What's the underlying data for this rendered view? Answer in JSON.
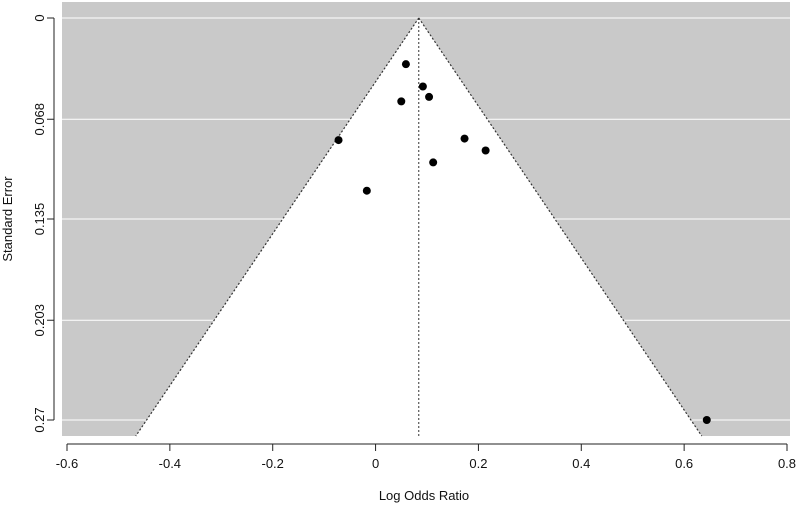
{
  "chart_data": {
    "type": "scatter",
    "subtype": "funnel plot",
    "title": "",
    "xlabel": "Log Odds Ratio",
    "ylabel": "Standard Error",
    "xlim": [
      -0.6,
      0.8
    ],
    "ylim": [
      0,
      0.27
    ],
    "y_reversed": true,
    "x_ticks": [
      -0.6,
      -0.4,
      -0.2,
      0,
      0.2,
      0.4,
      0.6,
      0.8
    ],
    "x_tick_labels": [
      "-0.6",
      "-0.4",
      "-0.2",
      "0",
      "0.2",
      "0.4",
      "0.6",
      "0.8"
    ],
    "y_ticks": [
      0,
      0.068,
      0.135,
      0.203,
      0.27
    ],
    "y_tick_labels": [
      "0",
      "0.068",
      "0.135",
      "0.203",
      "0.27"
    ],
    "grid": true,
    "background_color": "#c9c9c9",
    "funnel_color": "#ffffff",
    "point_color": "#000000",
    "reference_line_x": 0.084,
    "funnel_z": 1.96,
    "points": [
      {
        "x": 0.059,
        "y": 0.031
      },
      {
        "x": 0.092,
        "y": 0.046
      },
      {
        "x": 0.104,
        "y": 0.053
      },
      {
        "x": 0.05,
        "y": 0.056
      },
      {
        "x": -0.072,
        "y": 0.082
      },
      {
        "x": 0.173,
        "y": 0.081
      },
      {
        "x": 0.214,
        "y": 0.089
      },
      {
        "x": 0.112,
        "y": 0.097
      },
      {
        "x": -0.017,
        "y": 0.116
      },
      {
        "x": 0.644,
        "y": 0.27
      }
    ]
  }
}
